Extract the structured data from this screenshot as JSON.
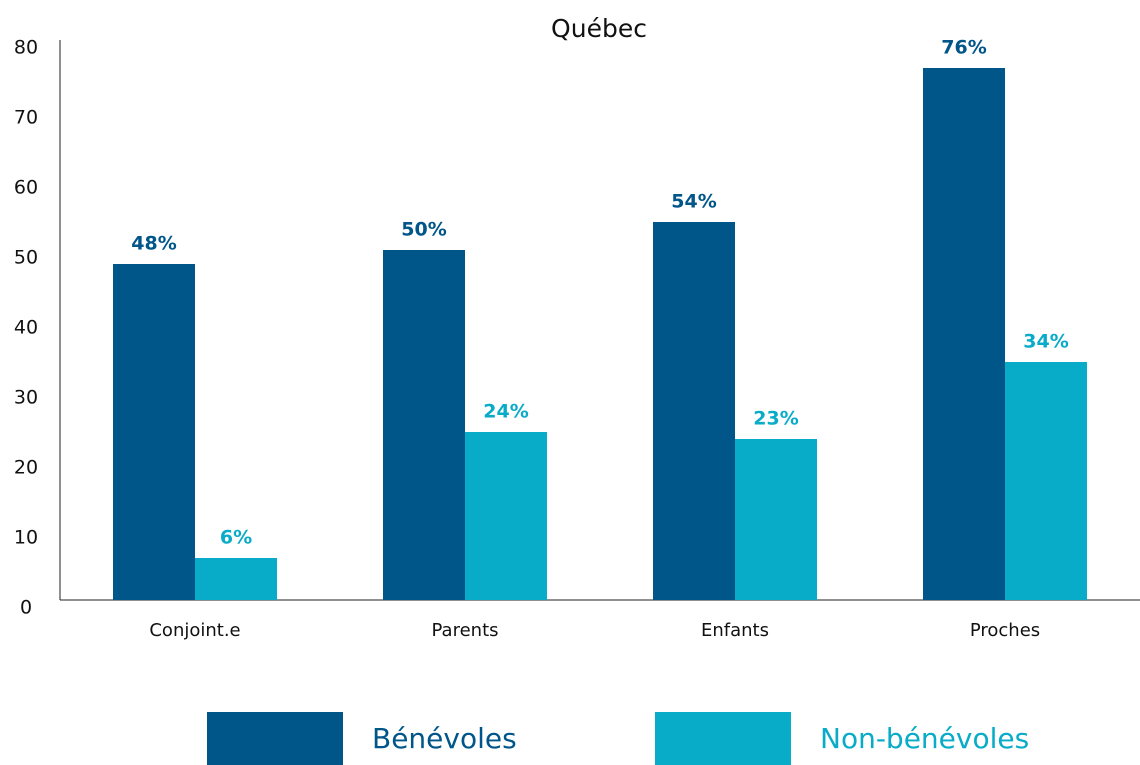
{
  "chart_data": {
    "type": "bar",
    "title": "Québec",
    "categories": [
      "Conjoint.e",
      "Parents",
      "Enfants",
      "Proches"
    ],
    "series": [
      {
        "name": "Bénévoles",
        "color": "#005589",
        "values": [
          48,
          50,
          54,
          76
        ],
        "value_labels": [
          "48%",
          "50%",
          "54%",
          "76%"
        ]
      },
      {
        "name": "Non-bénévoles",
        "color": "#08abc8",
        "values": [
          6,
          24,
          23,
          34
        ],
        "value_labels": [
          "6%",
          "24%",
          "23%",
          "34%"
        ]
      }
    ],
    "ylim": [
      0,
      80
    ],
    "yticks": [
      0,
      10,
      20,
      30,
      40,
      50,
      60,
      70,
      80
    ],
    "grid": false,
    "legend": "bottom"
  }
}
